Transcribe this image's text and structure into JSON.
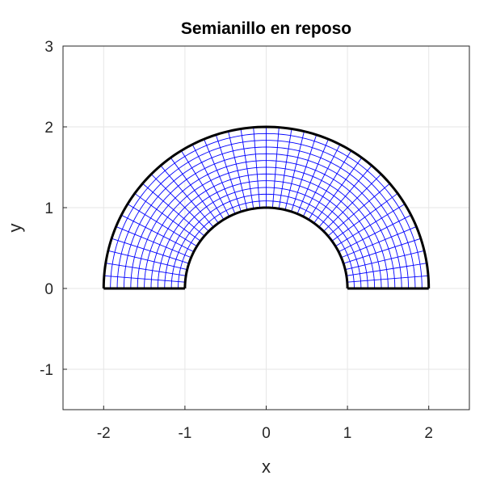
{
  "chart_data": {
    "type": "mesh",
    "title": "Semianillo en reposo",
    "xlabel": "x",
    "ylabel": "y",
    "xlim": [
      -2.5,
      2.5
    ],
    "ylim": [
      -1.5,
      3
    ],
    "xticks": [
      -2,
      -1,
      0,
      1,
      2
    ],
    "yticks": [
      -1,
      0,
      1,
      2,
      3
    ],
    "xtick_labels": [
      "-2",
      "-1",
      "0",
      "1",
      "2"
    ],
    "ytick_labels": [
      "-1",
      "0",
      "1",
      "2",
      "3"
    ],
    "grid": true,
    "shape": {
      "inner_radius": 1,
      "outer_radius": 2,
      "angle_range_deg": [
        0,
        180
      ],
      "angular_divisions": 40,
      "radial_divisions": 12
    },
    "colors": {
      "mesh": "#0000ff",
      "boundary": "#000000",
      "grid": "#e6e6e6",
      "axes": "#262626"
    }
  }
}
